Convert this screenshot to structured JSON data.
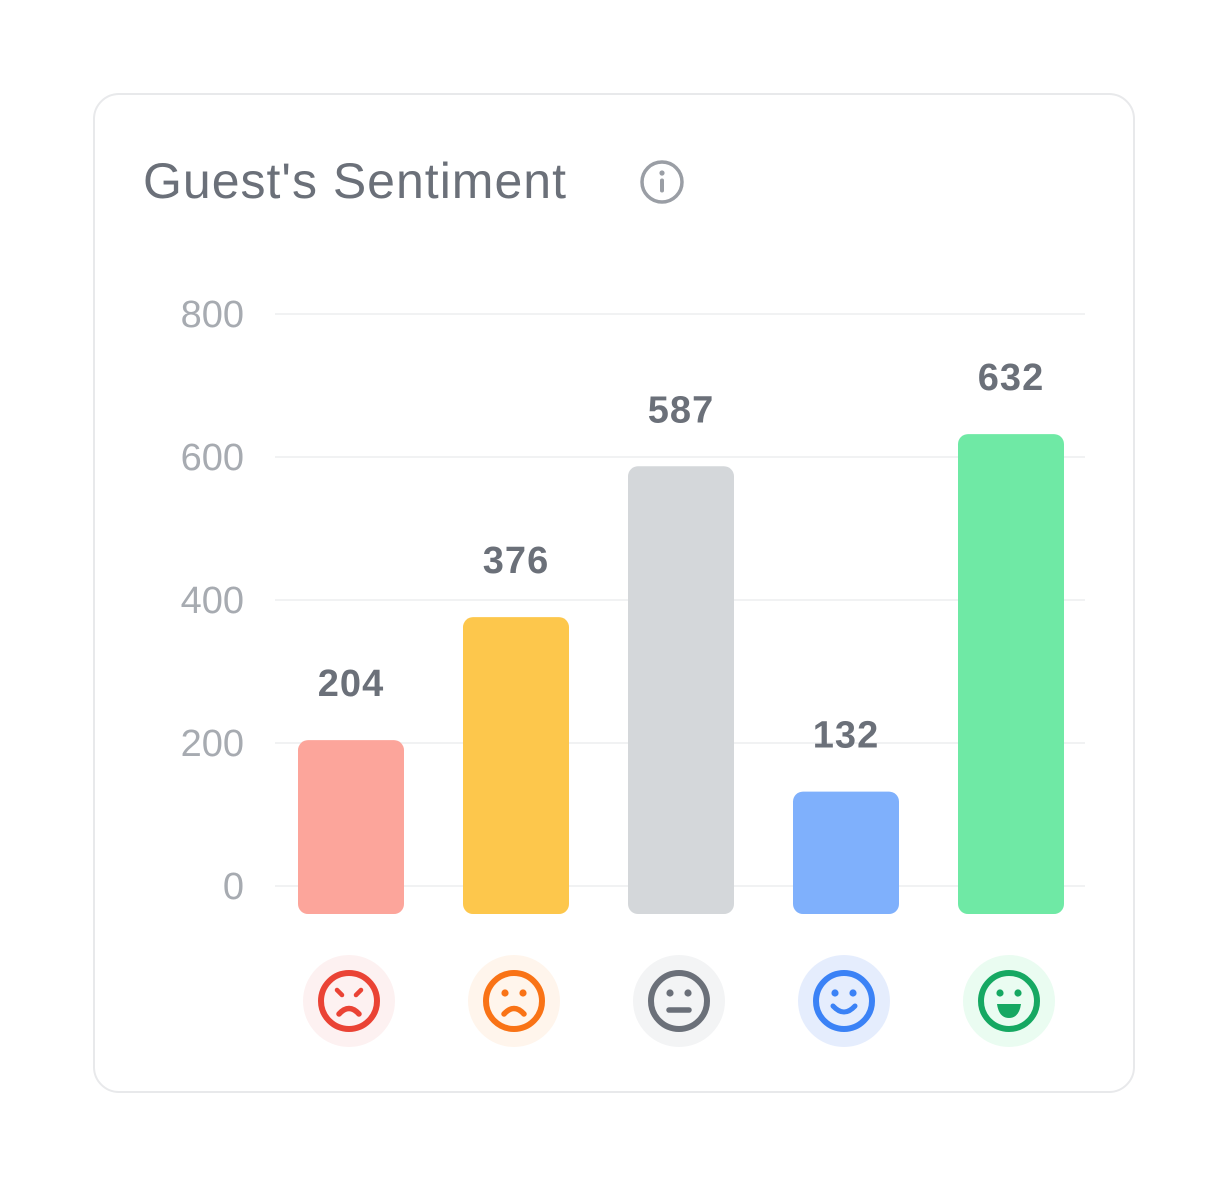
{
  "card": {
    "title": "Guest's Sentiment",
    "info_icon": "info-circle-icon"
  },
  "chart_data": {
    "type": "bar",
    "title": "Guest's Sentiment",
    "categories": [
      "very-negative",
      "negative",
      "neutral",
      "positive",
      "very-positive"
    ],
    "category_icons": [
      "angry-face-icon",
      "sad-face-icon",
      "neutral-face-icon",
      "smiling-face-icon",
      "grinning-face-icon"
    ],
    "values": [
      204,
      376,
      587,
      132,
      632
    ],
    "data_labels": [
      "204",
      "376",
      "587",
      "132",
      "632"
    ],
    "bar_colors": [
      "#fca59b",
      "#fdc74c",
      "#d4d7da",
      "#7fb0fc",
      "#6fe9a5"
    ],
    "icon_colors": [
      "#ea4335",
      "#f97316",
      "#6b7079",
      "#3b82f6",
      "#16a862"
    ],
    "icon_bg_colors": [
      "#fdf1f1",
      "#fff5ec",
      "#f3f4f5",
      "#e5edfd",
      "#eafcf1"
    ],
    "ylim": [
      0,
      800
    ],
    "yticks": [
      "0",
      "200",
      "400",
      "600",
      "800"
    ],
    "grid": true,
    "xlabel": "",
    "ylabel": ""
  }
}
